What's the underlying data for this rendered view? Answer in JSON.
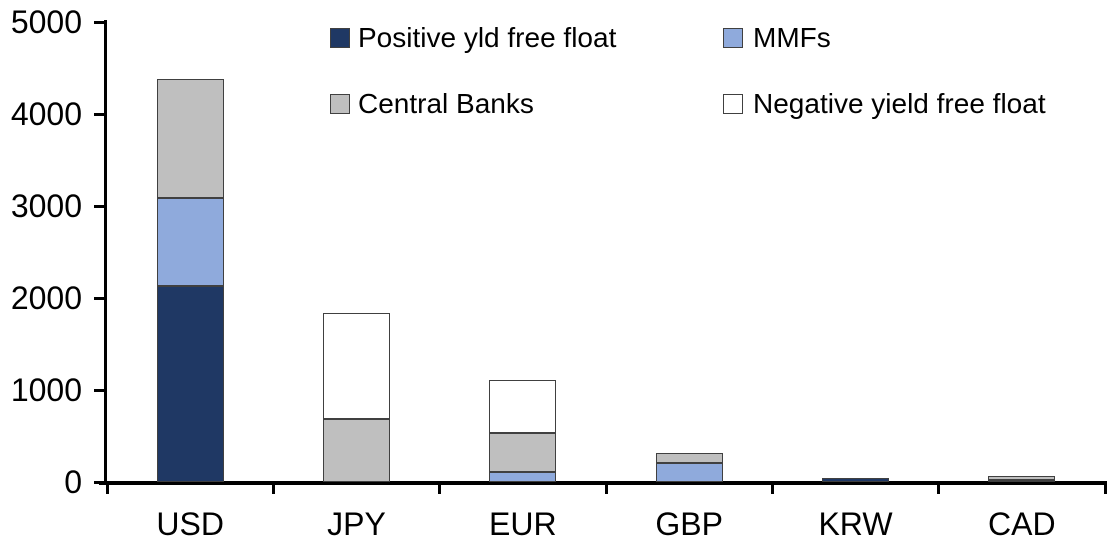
{
  "chart_data": {
    "type": "bar",
    "stacked": true,
    "title": "",
    "categories": [
      "USD",
      "JPY",
      "EUR",
      "GBP",
      "KRW",
      "CAD"
    ],
    "series": [
      {
        "name": "Positive yld free float",
        "color": "#1F3864",
        "values": [
          2130,
          0,
          0,
          0,
          40,
          20
        ]
      },
      {
        "name": "MMFs",
        "color": "#8FAADC",
        "values": [
          960,
          0,
          110,
          205,
          0,
          0
        ]
      },
      {
        "name": "Central Banks",
        "color": "#BFBFBF",
        "values": [
          1290,
          690,
          425,
          110,
          0,
          40
        ]
      },
      {
        "name": "Negative yield free float",
        "color": "#FFFFFF",
        "values": [
          0,
          1150,
          575,
          0,
          0,
          0
        ]
      }
    ],
    "totals": [
      4380,
      1840,
      1110,
      315,
      40,
      60
    ],
    "xlabel": "",
    "ylabel": "",
    "ylim": [
      0,
      5000
    ],
    "yticks": [
      "0",
      "1000",
      "2000",
      "3000",
      "4000",
      "5000"
    ],
    "grid": false,
    "legend_position": "top",
    "axis_color": "#000000",
    "bar_outline_color": "#404040"
  }
}
